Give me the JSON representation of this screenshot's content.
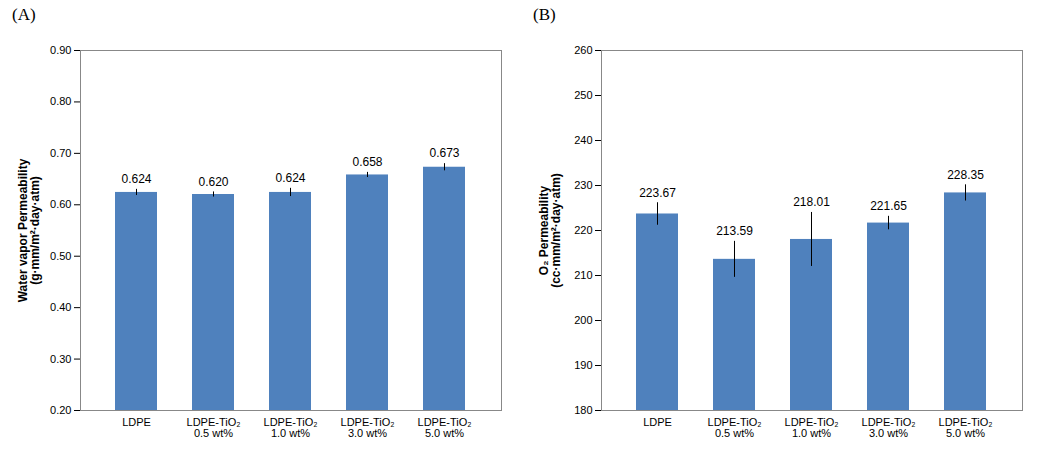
{
  "chart_data": [
    {
      "type": "bar",
      "title": "(A)",
      "ylabel": "Water vapor Permeability (g·mm/m²·day·atm)",
      "categories": [
        "LDPE",
        "LDPE-TiO₂ 0.5 wt%",
        "LDPE-TiO₂ 1.0 wt%",
        "LDPE-TiO₂ 3.0 wt%",
        "LDPE-TiO₂ 5.0 wt%"
      ],
      "values": [
        0.624,
        0.62,
        0.624,
        0.658,
        0.673
      ],
      "value_labels": [
        "0.624",
        "0.620",
        "0.624",
        "0.658",
        "0.673"
      ],
      "errors": [
        0.006,
        0.005,
        0.008,
        0.005,
        0.007
      ],
      "color": "#4f81bd",
      "ylim": [
        0.2,
        0.9
      ],
      "yticks": [
        {
          "value": 0.2,
          "label": "0.20"
        },
        {
          "value": 0.3,
          "label": "0.30"
        },
        {
          "value": 0.4,
          "label": "0.40"
        },
        {
          "value": 0.5,
          "label": "0.50"
        },
        {
          "value": 0.6,
          "label": "0.60"
        },
        {
          "value": 0.7,
          "label": "0.70"
        },
        {
          "value": 0.8,
          "label": "0.80"
        },
        {
          "value": 0.9,
          "label": "0.90"
        }
      ],
      "grid": false,
      "data_labels": true
    },
    {
      "type": "bar",
      "title": "(B)",
      "ylabel": "O₂ Permeability (cc·mm/m²·day·atm)",
      "categories": [
        "LDPE",
        "LDPE-TiO₂ 0.5 wt%",
        "LDPE-TiO₂ 1.0 wt%",
        "LDPE-TiO₂ 3.0 wt%",
        "LDPE-TiO₂ 5.0 wt%"
      ],
      "values": [
        223.67,
        213.59,
        218.01,
        221.65,
        228.35
      ],
      "value_labels": [
        "223.67",
        "213.59",
        "218.01",
        "221.65",
        "228.35"
      ],
      "errors": [
        2.5,
        4.0,
        6.0,
        1.5,
        1.8
      ],
      "color": "#4f81bd",
      "ylim": [
        180,
        260
      ],
      "yticks": [
        180,
        190,
        200,
        210,
        220,
        230,
        240,
        250,
        260
      ],
      "grid": false,
      "data_labels": true
    }
  ]
}
